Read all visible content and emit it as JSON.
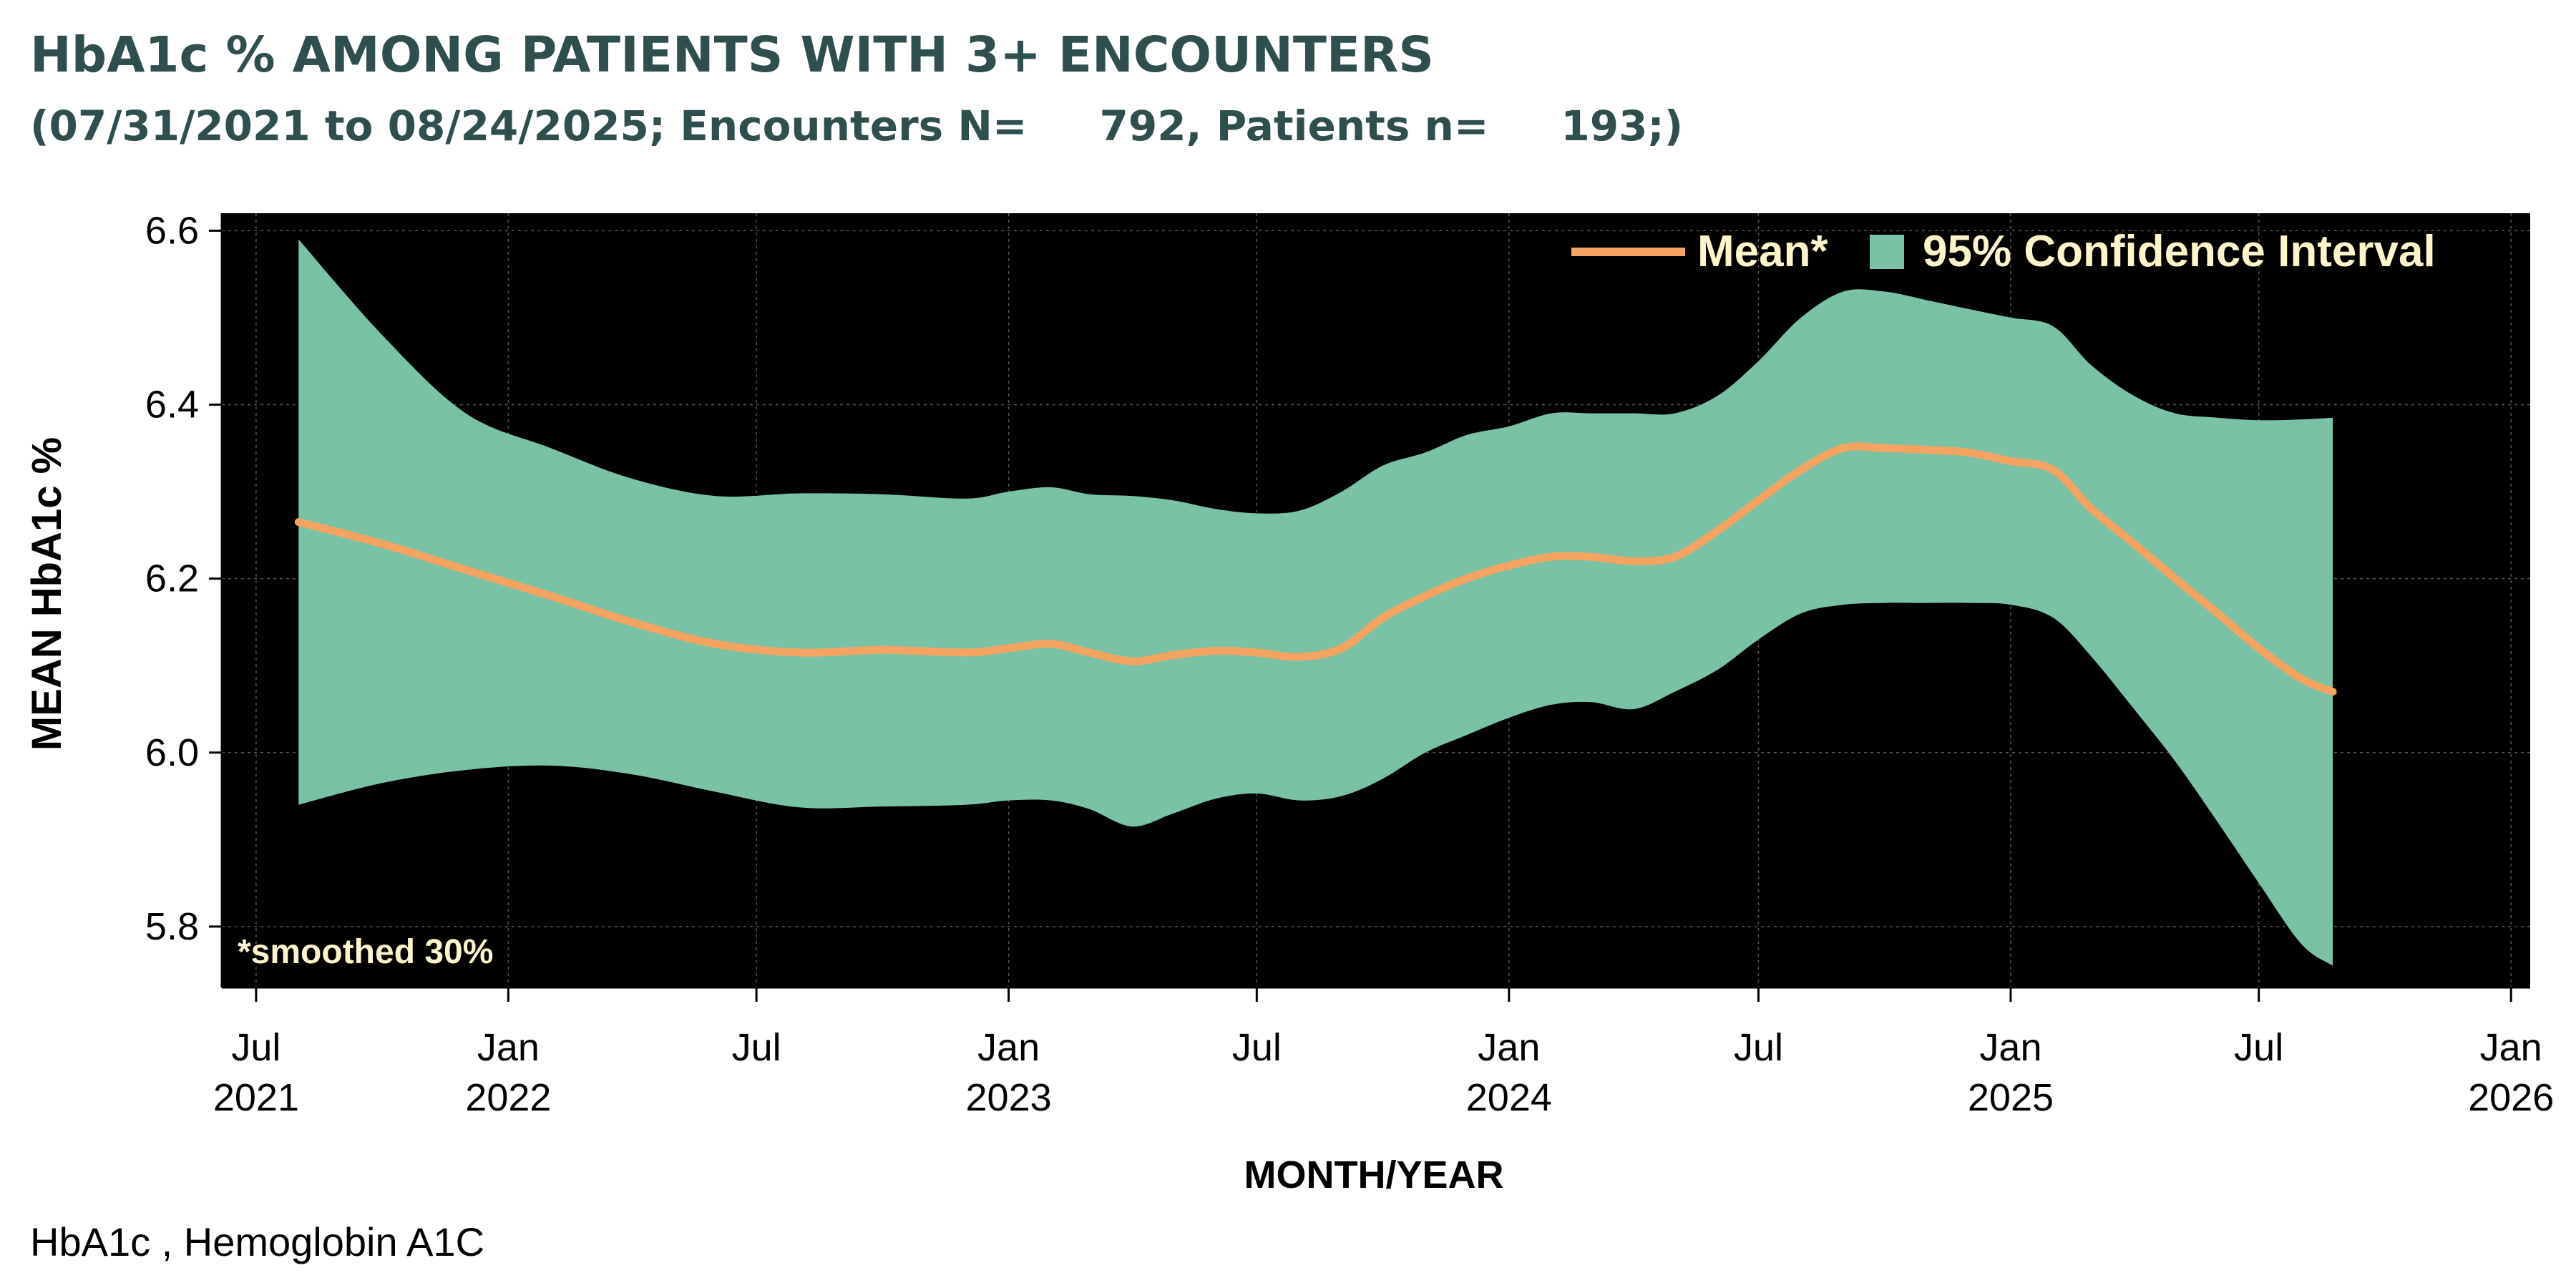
{
  "chart_data": {
    "type": "line",
    "title": "HbA1c % AMONG PATIENTS WITH 3+ ENCOUNTERS",
    "subtitle": "(07/31/2021 to 08/24/2025; Encounters N=     792, Patients n=     193;)",
    "xlabel": "MONTH/YEAR",
    "ylabel": "MEAN HbA1c %",
    "ylim": [
      5.73,
      6.62
    ],
    "xlim": [
      "2021-06-06",
      "2026-01-15"
    ],
    "y_ticks": [
      "5.8",
      "6.0",
      "6.2",
      "6.4",
      "6.6"
    ],
    "x_ticks": [
      {
        "date": "2021-07-01",
        "month": "Jul",
        "year": "2021"
      },
      {
        "date": "2022-01-01",
        "month": "Jan",
        "year": "2022"
      },
      {
        "date": "2022-07-01",
        "month": "Jul",
        "year": ""
      },
      {
        "date": "2023-01-01",
        "month": "Jan",
        "year": "2023"
      },
      {
        "date": "2023-07-01",
        "month": "Jul",
        "year": ""
      },
      {
        "date": "2024-01-01",
        "month": "Jan",
        "year": "2024"
      },
      {
        "date": "2024-07-01",
        "month": "Jul",
        "year": ""
      },
      {
        "date": "2025-01-01",
        "month": "Jan",
        "year": "2025"
      },
      {
        "date": "2025-07-01",
        "month": "Jul",
        "year": ""
      },
      {
        "date": "2026-01-01",
        "month": "Jan",
        "year": "2026"
      }
    ],
    "x": [
      "2021-08-01",
      "2021-10-01",
      "2021-12-01",
      "2022-02-01",
      "2022-04-01",
      "2022-06-01",
      "2022-08-01",
      "2022-10-01",
      "2022-12-01",
      "2023-01-01",
      "2023-02-01",
      "2023-03-01",
      "2023-04-01",
      "2023-05-01",
      "2023-06-01",
      "2023-07-01",
      "2023-08-01",
      "2023-09-01",
      "2023-10-01",
      "2023-11-01",
      "2023-12-01",
      "2024-01-01",
      "2024-02-01",
      "2024-03-01",
      "2024-04-01",
      "2024-05-01",
      "2024-06-01",
      "2024-07-01",
      "2024-08-01",
      "2024-09-01",
      "2024-10-01",
      "2024-11-01",
      "2024-12-01",
      "2025-01-01",
      "2025-02-01",
      "2025-03-01",
      "2025-04-01",
      "2025-05-01",
      "2025-06-01",
      "2025-07-01",
      "2025-08-01",
      "2025-08-24"
    ],
    "series": [
      {
        "name": "Mean*",
        "color": "#f4a460",
        "values": [
          6.265,
          6.24,
          6.21,
          6.18,
          6.15,
          6.125,
          6.115,
          6.118,
          6.115,
          6.12,
          6.125,
          6.115,
          6.105,
          6.112,
          6.117,
          6.115,
          6.11,
          6.12,
          6.155,
          6.18,
          6.2,
          6.215,
          6.225,
          6.225,
          6.22,
          6.225,
          6.255,
          6.29,
          6.325,
          6.35,
          6.35,
          6.348,
          6.345,
          6.335,
          6.325,
          6.28,
          6.24,
          6.2,
          6.16,
          6.12,
          6.085,
          6.07
        ]
      }
    ],
    "band": {
      "name": "95% Confidence Interval",
      "color": "#7ac2a6",
      "upper": [
        6.59,
        6.48,
        6.39,
        6.35,
        6.315,
        6.295,
        6.298,
        6.297,
        6.292,
        6.3,
        6.305,
        6.297,
        6.295,
        6.29,
        6.28,
        6.275,
        6.278,
        6.3,
        6.33,
        6.345,
        6.365,
        6.375,
        6.39,
        6.39,
        6.39,
        6.39,
        6.41,
        6.45,
        6.5,
        6.53,
        6.53,
        6.52,
        6.51,
        6.5,
        6.49,
        6.445,
        6.41,
        6.39,
        6.385,
        6.382,
        6.383,
        6.385
      ],
      "lower": [
        5.94,
        5.965,
        5.98,
        5.985,
        5.975,
        5.955,
        5.937,
        5.938,
        5.94,
        5.945,
        5.945,
        5.935,
        5.915,
        5.93,
        5.947,
        5.953,
        5.945,
        5.95,
        5.97,
        6.0,
        6.02,
        6.04,
        6.055,
        6.058,
        6.05,
        6.07,
        6.095,
        6.13,
        6.16,
        6.17,
        6.172,
        6.172,
        6.172,
        6.17,
        6.155,
        6.11,
        6.05,
        5.99,
        5.92,
        5.85,
        5.78,
        5.755
      ]
    },
    "annotation": "*smoothed 30%",
    "footnote": "HbA1c , Hemoglobin A1C",
    "legend_placement": "top-right",
    "grid": true,
    "colors": {
      "plot_bg": "#000000",
      "title": "#2f4f4f",
      "legend_text": "#fdf5c9",
      "grid": "#555555"
    }
  }
}
